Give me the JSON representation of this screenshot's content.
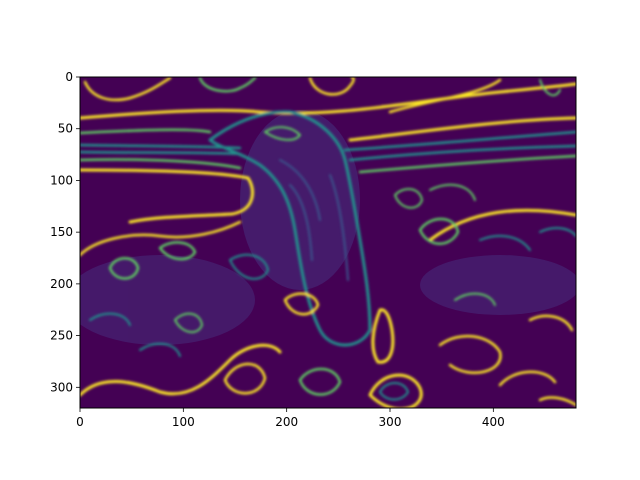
{
  "chart_data": {
    "type": "heatmap",
    "title": "",
    "xlabel": "",
    "ylabel": "",
    "colormap": "viridis",
    "image_shape": [
      320,
      480
    ],
    "xlim": [
      0,
      480
    ],
    "ylim": [
      320,
      0
    ],
    "y_axis_inverted": true,
    "x_ticks": [
      0,
      100,
      200,
      300,
      400
    ],
    "y_ticks": [
      0,
      50,
      100,
      150,
      200,
      250,
      300
    ],
    "grid": false,
    "legend": "none",
    "content": "gradient-magnitude edge map of a photo of a bird perched above foliage",
    "background_color": "#440154",
    "edge_colors": [
      "#3b528b",
      "#21918c",
      "#5ec962",
      "#fde725"
    ]
  }
}
